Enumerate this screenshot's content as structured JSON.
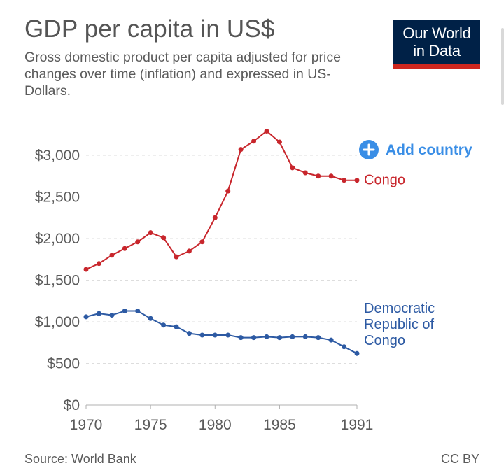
{
  "header": {
    "title": "GDP per capita in US$",
    "subtitle": "Gross domestic product per capita adjusted for price changes over time (inflation) and expressed in US-Dollars.",
    "logo_line1": "Our World",
    "logo_line2": "in Data"
  },
  "controls": {
    "add_country_label": "Add country",
    "add_country_icon": "plus-circle-icon"
  },
  "footer": {
    "source": "Source: World Bank",
    "license": "CC BY"
  },
  "colors": {
    "congo": "#c8262c",
    "drc": "#2d5aa3",
    "logo_bg": "#002147",
    "logo_accent": "#ce261e",
    "add_country": "#3a8ee6",
    "axis_text": "#5b5b5b",
    "grid": "#dddddd"
  },
  "chart_data": {
    "type": "line",
    "title": "GDP per capita in US$",
    "subtitle": "Gross domestic product per capita adjusted for price changes over time (inflation) and expressed in US-Dollars.",
    "xlabel": "",
    "ylabel": "",
    "xlim": [
      1970,
      1991
    ],
    "ylim": [
      0,
      3000
    ],
    "x_ticks": [
      1970,
      1975,
      1980,
      1985,
      1991
    ],
    "x_tick_labels": [
      "1970",
      "1975",
      "1980",
      "1985",
      "1991"
    ],
    "y_ticks": [
      0,
      500,
      1000,
      1500,
      2000,
      2500,
      3000
    ],
    "y_tick_labels": [
      "$0",
      "$500",
      "$1,000",
      "$1,500",
      "$2,000",
      "$2,500",
      "$3,000"
    ],
    "grid": "horizontal dashed",
    "legend": "end-of-line labels",
    "x": [
      1970,
      1971,
      1972,
      1973,
      1974,
      1975,
      1976,
      1977,
      1978,
      1979,
      1980,
      1981,
      1982,
      1983,
      1984,
      1985,
      1986,
      1987,
      1988,
      1989,
      1990,
      1991
    ],
    "series": [
      {
        "name": "Congo",
        "label_lines": [
          "Congo"
        ],
        "color": "#c8262c",
        "values": [
          1630,
          1700,
          1800,
          1880,
          1960,
          2070,
          2010,
          1780,
          1850,
          1960,
          2250,
          2570,
          3070,
          3170,
          3290,
          3160,
          2850,
          2790,
          2750,
          2750,
          2700,
          2700
        ]
      },
      {
        "name": "Democratic Republic of Congo",
        "label_lines": [
          "Democratic",
          "Republic of",
          "Congo"
        ],
        "color": "#2d5aa3",
        "values": [
          1060,
          1100,
          1080,
          1130,
          1130,
          1040,
          960,
          940,
          860,
          840,
          840,
          840,
          810,
          810,
          820,
          810,
          820,
          820,
          810,
          780,
          700,
          620
        ]
      }
    ]
  }
}
